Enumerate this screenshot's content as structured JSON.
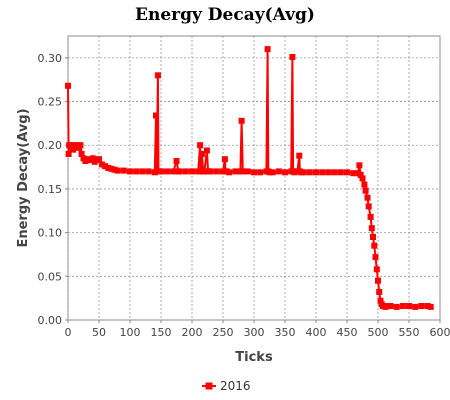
{
  "chart_data": {
    "type": "line",
    "title": "Energy Decay(Avg)",
    "xlabel": "Ticks",
    "ylabel": "Energy Decay(Avg)",
    "xlim": [
      0,
      600
    ],
    "ylim": [
      0,
      0.325
    ],
    "xticks": [
      0,
      50,
      100,
      150,
      200,
      250,
      300,
      350,
      400,
      450,
      500,
      550,
      600
    ],
    "xtick_labels": [
      "0",
      "50",
      "100",
      "150",
      "200",
      "250",
      "300",
      "350",
      "400",
      "450",
      "500",
      "550",
      "600"
    ],
    "yticks": [
      0.0,
      0.05,
      0.1,
      0.15,
      0.2,
      0.25,
      0.3
    ],
    "ytick_labels": [
      "0.00",
      "0.05",
      "0.10",
      "0.15",
      "0.20",
      "0.25",
      "0.30"
    ],
    "grid": true,
    "legend_position": "bottom-center",
    "series_color": "#ff0000",
    "series": [
      {
        "name": "2016",
        "x": [
          0,
          1,
          2,
          4,
          6,
          8,
          10,
          12,
          15,
          18,
          20,
          22,
          25,
          28,
          30,
          33,
          36,
          40,
          43,
          46,
          50,
          55,
          60,
          65,
          70,
          75,
          80,
          90,
          100,
          110,
          120,
          130,
          140,
          142,
          143,
          145,
          146,
          148,
          150,
          160,
          170,
          175,
          178,
          180,
          190,
          200,
          210,
          213,
          214,
          216,
          218,
          220,
          224,
          226,
          228,
          230,
          240,
          250,
          253,
          254,
          256,
          260,
          270,
          278,
          280,
          282,
          290,
          300,
          310,
          320,
          322,
          323,
          325,
          330,
          340,
          350,
          360,
          362,
          363,
          365,
          370,
          373,
          374,
          376,
          380,
          390,
          400,
          410,
          420,
          430,
          440,
          450,
          460,
          468,
          470,
          472,
          475,
          478,
          480,
          483,
          485,
          488,
          490,
          492,
          494,
          496,
          498,
          500,
          502,
          504,
          506,
          508,
          510,
          512,
          515,
          520,
          530,
          540,
          550,
          560,
          570,
          580,
          585
        ],
        "y": [
          0.268,
          0.19,
          0.2,
          0.198,
          0.2,
          0.195,
          0.2,
          0.198,
          0.2,
          0.197,
          0.2,
          0.19,
          0.185,
          0.182,
          0.183,
          0.184,
          0.183,
          0.185,
          0.181,
          0.183,
          0.184,
          0.178,
          0.176,
          0.174,
          0.173,
          0.172,
          0.171,
          0.171,
          0.17,
          0.17,
          0.17,
          0.17,
          0.169,
          0.234,
          0.17,
          0.28,
          0.17,
          0.17,
          0.17,
          0.17,
          0.17,
          0.182,
          0.17,
          0.17,
          0.17,
          0.17,
          0.17,
          0.2,
          0.17,
          0.19,
          0.17,
          0.17,
          0.194,
          0.17,
          0.17,
          0.17,
          0.17,
          0.17,
          0.184,
          0.17,
          0.17,
          0.169,
          0.17,
          0.17,
          0.228,
          0.17,
          0.17,
          0.169,
          0.169,
          0.17,
          0.31,
          0.17,
          0.169,
          0.169,
          0.17,
          0.169,
          0.17,
          0.301,
          0.17,
          0.169,
          0.17,
          0.188,
          0.17,
          0.169,
          0.169,
          0.169,
          0.169,
          0.169,
          0.169,
          0.169,
          0.169,
          0.169,
          0.168,
          0.168,
          0.177,
          0.166,
          0.162,
          0.155,
          0.148,
          0.14,
          0.13,
          0.118,
          0.105,
          0.095,
          0.085,
          0.072,
          0.058,
          0.045,
          0.032,
          0.022,
          0.018,
          0.016,
          0.016,
          0.015,
          0.016,
          0.016,
          0.015,
          0.016,
          0.016,
          0.015,
          0.016,
          0.016,
          0.015
        ]
      }
    ]
  }
}
